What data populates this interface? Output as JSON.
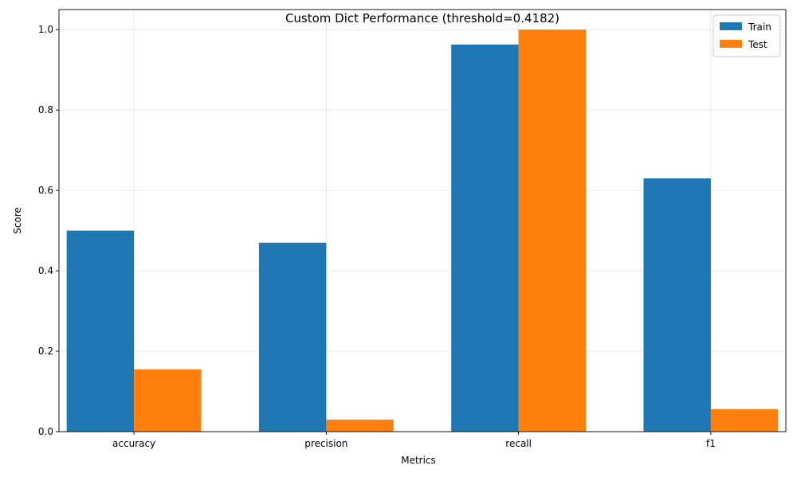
{
  "chart_data": {
    "type": "bar",
    "title": "Custom Dict Performance (threshold=0.4182)",
    "xlabel": "Metrics",
    "ylabel": "Score",
    "categories": [
      "accuracy",
      "precision",
      "recall",
      "f1"
    ],
    "series": [
      {
        "name": "Train",
        "color": "#1f77b4",
        "values": [
          0.5,
          0.47,
          0.963,
          0.63
        ]
      },
      {
        "name": "Test",
        "color": "#ff7f0e",
        "values": [
          0.155,
          0.03,
          1.0,
          0.056
        ]
      }
    ],
    "ylim": [
      0,
      1.05
    ],
    "yticks": [
      "0.0",
      "0.2",
      "0.4",
      "0.6",
      "0.8",
      "1.0"
    ],
    "grid": true,
    "legend_position": "top-right"
  }
}
